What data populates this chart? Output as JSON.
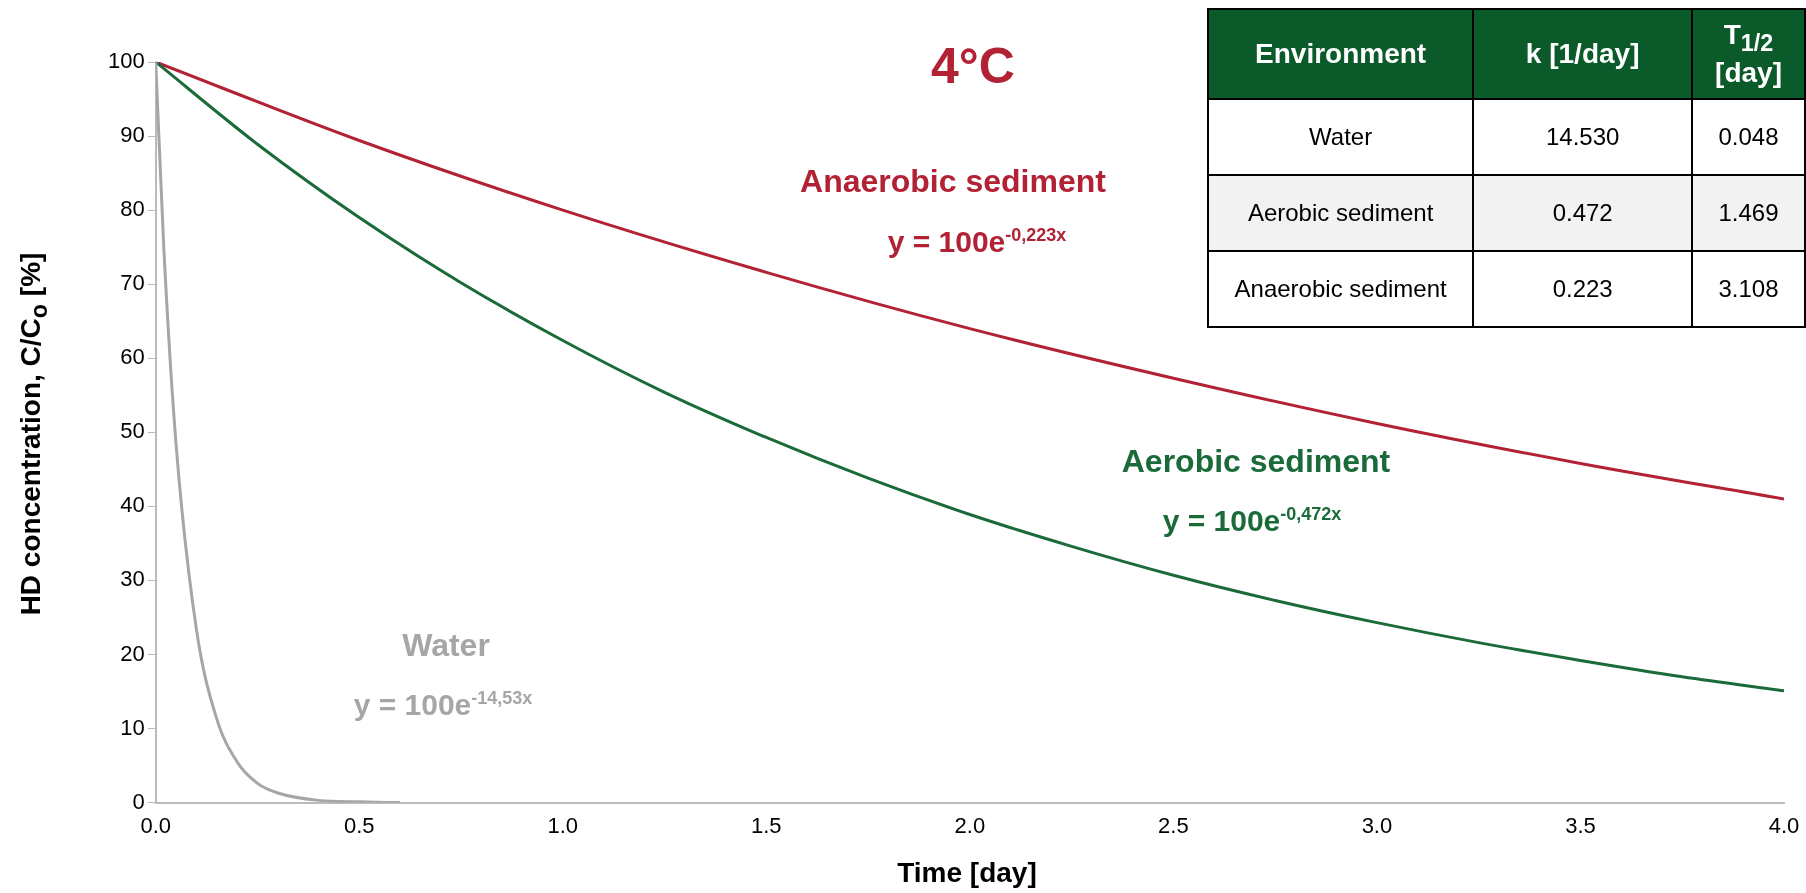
{
  "chart_data": {
    "type": "line",
    "title": "4°C",
    "xlabel": "Time [day]",
    "ylabel": "HD concentration, C/C$_{o}$ [%]",
    "xlim": [
      0,
      4
    ],
    "xticks": [
      {
        "value": 0,
        "label": "0.0"
      },
      {
        "value": 0.5,
        "label": "0.5"
      },
      {
        "value": 1,
        "label": "1.0"
      },
      {
        "value": 1.5,
        "label": "1.5"
      },
      {
        "value": 2,
        "label": "2.0"
      },
      {
        "value": 2.5,
        "label": "2.5"
      },
      {
        "value": 3,
        "label": "3.0"
      },
      {
        "value": 3.5,
        "label": "3.5"
      },
      {
        "value": 4,
        "label": "4.0"
      }
    ],
    "ylim": [
      0,
      100
    ],
    "yticks": [
      0,
      10,
      20,
      30,
      40,
      50,
      60,
      70,
      80,
      90,
      100
    ],
    "grid": false,
    "legend": false,
    "marker": "none",
    "line_style": "solid",
    "series": [
      {
        "name": "Water",
        "color": "#a6a6a6",
        "x": [
          0,
          0.02,
          0.05,
          0.1,
          0.15,
          0.2,
          0.25,
          0.3,
          0.4,
          0.5,
          0.6
        ],
        "values": [
          100,
          74.8,
          48.4,
          23.4,
          11.3,
          5.5,
          2.6,
          1.3,
          0.3,
          0.1,
          0
        ]
      },
      {
        "name": "Aerobic sediment",
        "color": "#1b6b3a",
        "x": [
          0,
          0.25,
          0.5,
          0.75,
          1,
          1.25,
          1.5,
          1.75,
          2,
          2.25,
          2.5,
          2.75,
          3,
          3.25,
          3.5,
          3.75,
          4
        ],
        "values": [
          100,
          88.9,
          79.0,
          70.2,
          62.4,
          55.4,
          49.3,
          43.8,
          38.9,
          34.6,
          30.7,
          27.3,
          24.3,
          21.6,
          19.2,
          17.0,
          15.1
        ]
      },
      {
        "name": "Anaerobic sediment",
        "color": "#b22234",
        "x": [
          0,
          0.5,
          1,
          1.5,
          2,
          2.5,
          3,
          3.5,
          4
        ],
        "values": [
          100,
          89.4,
          80.0,
          71.6,
          64.0,
          57.3,
          51.2,
          45.8,
          41.0
        ]
      }
    ],
    "annotations": [
      "y = 100e$^{-14,53x}$",
      "y = 100e$^{-0,472x}$",
      "y = 100e$^{-0,223x}$",
      "Environment",
      "k [1/day]",
      "T$_{1/2}$ [day]",
      "Water",
      "14.530",
      "0.048",
      "Aerobic sediment",
      "0.472",
      "1.469",
      "Anaerobic sediment",
      "0.223",
      "3.108"
    ]
  }
}
